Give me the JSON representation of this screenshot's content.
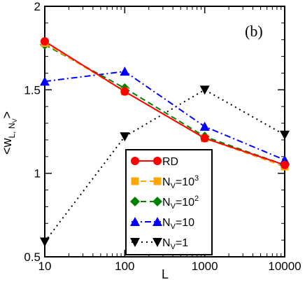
{
  "chart_data": {
    "type": "line",
    "panel_label": "(b)",
    "xlabel": "L",
    "ylabel": "<w",
    "ylabel_subscript": "L, N",
    "ylabel_subsub": "V",
    "ylabel_close": ">",
    "x_scale": "log",
    "xlim": [
      10,
      10000
    ],
    "ylim": [
      0.5,
      2
    ],
    "x_ticks": [
      10,
      100,
      1000,
      10000
    ],
    "x_tick_labels": [
      "10",
      "100",
      "1000",
      "10000"
    ],
    "y_ticks": [
      0.5,
      1,
      1.5,
      2
    ],
    "y_tick_labels": [
      "0.5",
      "1",
      "1.5",
      "2"
    ],
    "legend_position": "lower-center",
    "series": [
      {
        "name": "RD",
        "label_main": "RD",
        "label_sub": "",
        "label_rest": "",
        "label_sup": "",
        "x": [
          10,
          100,
          1000,
          10000
        ],
        "values": [
          1.79,
          1.49,
          1.21,
          1.05
        ],
        "color": "#ff0000",
        "marker": "circle",
        "dash": "solid"
      },
      {
        "name": "N_V=10^3",
        "label_main": "N",
        "label_sub": "V",
        "label_rest": "=10",
        "label_sup": "3",
        "x": [
          10,
          100,
          1000,
          10000
        ],
        "values": [
          1.78,
          1.49,
          1.21,
          1.04
        ],
        "color": "#ffa500",
        "marker": "square",
        "dash": "dashed"
      },
      {
        "name": "N_V=10^2",
        "label_main": "N",
        "label_sub": "V",
        "label_rest": "=10",
        "label_sup": "2",
        "x": [
          10,
          100,
          1000,
          10000
        ],
        "values": [
          1.77,
          1.51,
          1.22,
          1.05
        ],
        "color": "#008000",
        "marker": "diamond",
        "dash": "dashed"
      },
      {
        "name": "N_V=10",
        "label_main": "N",
        "label_sub": "V",
        "label_rest": "=10",
        "label_sup": "",
        "x": [
          10,
          100,
          1000,
          10000
        ],
        "values": [
          1.55,
          1.61,
          1.28,
          1.08
        ],
        "color": "#0000ff",
        "marker": "triangle-up",
        "dash": "dashdot"
      },
      {
        "name": "N_V=1",
        "label_main": "N",
        "label_sub": "V",
        "label_rest": "=1",
        "label_sup": "",
        "x": [
          10,
          100,
          1000,
          10000
        ],
        "values": [
          0.59,
          1.22,
          1.5,
          1.23
        ],
        "color": "#000000",
        "marker": "triangle-down",
        "dash": "dotted"
      }
    ]
  }
}
